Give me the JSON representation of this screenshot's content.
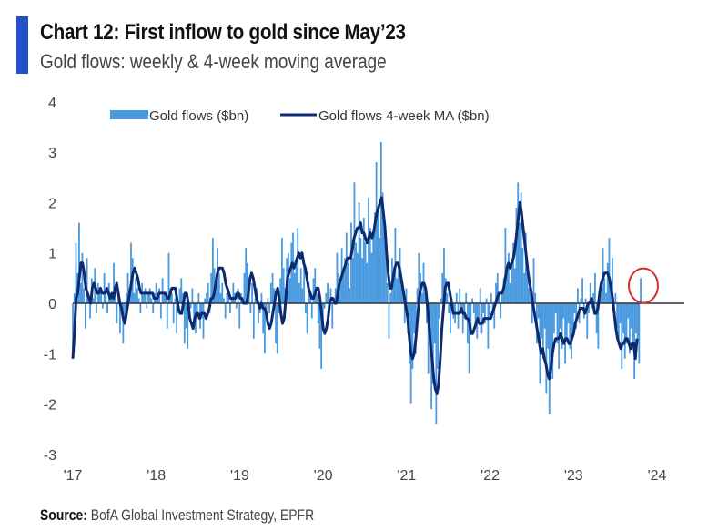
{
  "header": {
    "title": "Chart 12: First inflow to gold since May’23",
    "subtitle": "Gold flows: weekly & 4-week moving average"
  },
  "footer": {
    "source_label": "Source:",
    "source_text": "BofA Global Investment Strategy, EPFR"
  },
  "colors": {
    "accent": "#2352c8",
    "bars": "#4a9ae0",
    "ma_line": "#0d2a6e",
    "zero_line": "#333333",
    "highlight_circle": "#d0312d"
  },
  "chart_data": {
    "type": "bar",
    "title": "Chart 12: First inflow to gold since May’23",
    "subtitle": "Gold flows: weekly & 4-week moving average",
    "xlabel": "",
    "ylabel": "",
    "ylim": [
      -3,
      4
    ],
    "xlim": [
      2017.0,
      2024.0
    ],
    "yticks": [
      "4",
      "3",
      "2",
      "1",
      "0",
      "-1",
      "-2",
      "-3"
    ],
    "ytick_values": [
      4,
      3,
      2,
      1,
      0,
      -1,
      -2,
      -3
    ],
    "xticks": [
      "'17",
      "'18",
      "'19",
      "'20",
      "'21",
      "'22",
      "'23",
      "'24"
    ],
    "xtick_values": [
      2017,
      2018,
      2019,
      2020,
      2021,
      2022,
      2023,
      2024
    ],
    "grid": false,
    "legend": {
      "position": "top",
      "entries": [
        "Gold flows ($bn)",
        "Gold flows 4-week MA ($bn)"
      ]
    },
    "annotation": "red circle around latest weekly inflow",
    "x_start": 2017.0,
    "x_step_years": 0.01918,
    "series": [
      {
        "name": "Gold flows ($bn)",
        "kind": "bar",
        "values": [
          -1.0,
          0.2,
          1.2,
          0.6,
          1.6,
          0.4,
          1.0,
          0.3,
          -0.5,
          0.9,
          0.2,
          -0.3,
          0.5,
          0.1,
          0.7,
          -0.2,
          0.4,
          0.3,
          0.2,
          -0.1,
          0.6,
          0.3,
          -0.2,
          0.4,
          0.1,
          0.2,
          0.8,
          0.3,
          -0.4,
          0.1,
          -0.6,
          -0.2,
          -0.8,
          -0.4,
          0.2,
          0.6,
          0.3,
          1.2,
          0.9,
          0.2,
          0.5,
          0.3,
          0.1,
          -0.2,
          0.4,
          0.2,
          0.3,
          -0.1,
          0.2,
          0.3,
          0.1,
          -0.2,
          0.2,
          0.4,
          0.1,
          0.3,
          -0.3,
          0.5,
          0.2,
          0.1,
          -0.5,
          1.0,
          0.3,
          0.2,
          -0.4,
          0.1,
          -0.6,
          -0.2,
          0.3,
          0.5,
          0.2,
          -0.8,
          -0.5,
          -0.9,
          -0.3,
          -0.1,
          0.3,
          -0.4,
          -0.6,
          -0.2,
          0.2,
          -0.5,
          -0.3,
          -0.7,
          0.1,
          0.2,
          0.4,
          -0.2,
          0.6,
          1.3,
          0.7,
          0.3,
          1.1,
          0.6,
          0.2,
          0.4,
          0.1,
          -0.3,
          0.2,
          0.3,
          -0.2,
          0.1,
          0.4,
          0.2,
          -0.1,
          0.3,
          -0.5,
          0.2,
          0.1,
          0.6,
          1.1,
          0.8,
          0.5,
          -0.2,
          0.4,
          -0.7,
          0.1,
          0.3,
          -0.4,
          -0.2,
          0.2,
          -0.6,
          -1.0,
          -0.3,
          0.1,
          -0.2,
          0.4,
          0.6,
          0.3,
          -0.8,
          -1.0,
          -0.2,
          0.5,
          1.3,
          0.7,
          0.3,
          0.9,
          1.0,
          0.5,
          1.2,
          1.4,
          0.6,
          0.9,
          1.5,
          0.4,
          0.7,
          0.3,
          0.8,
          -0.2,
          -0.6,
          0.4,
          0.2,
          -0.3,
          0.5,
          0.7,
          0.2,
          -0.4,
          -0.9,
          -1.3,
          -0.5,
          -0.1,
          0.2,
          0.4,
          -0.2,
          0.3,
          -0.5,
          0.1,
          0.3,
          1.0,
          0.6,
          0.4,
          1.1,
          0.7,
          0.9,
          1.4,
          0.8,
          0.3,
          1.6,
          0.9,
          2.4,
          1.2,
          1.0,
          2.0,
          1.3,
          0.9,
          1.7,
          1.2,
          0.8,
          2.1,
          1.5,
          1.0,
          1.4,
          1.8,
          2.8,
          1.9,
          1.3,
          3.2,
          2.2,
          1.5,
          1.0,
          0.4,
          -0.7,
          0.2,
          0.9,
          0.6,
          1.5,
          0.5,
          0.8,
          1.1,
          0.4,
          0.2,
          -0.4,
          0.3,
          -0.6,
          -1.2,
          -2.0,
          -1.3,
          -0.6,
          -1.0,
          0.3,
          1.0,
          0.6,
          0.2,
          0.8,
          0.2,
          -0.4,
          -1.4,
          -0.9,
          -2.1,
          -1.6,
          -0.8,
          -2.4,
          -1.3,
          -0.3,
          0.1,
          0.6,
          1.1,
          0.5,
          0.2,
          -0.2,
          -0.6,
          0.1,
          -0.3,
          -0.4,
          0.2,
          -0.5,
          0.3,
          -0.1,
          -0.6,
          -0.3,
          0.2,
          -0.8,
          -1.4,
          -0.5,
          0.1,
          -0.2,
          -0.5,
          -0.7,
          -0.3,
          0.3,
          -0.6,
          -0.2,
          -0.4,
          0.1,
          -0.9,
          -0.3,
          0.2,
          -0.2,
          -0.5,
          0.4,
          0.6,
          0.2,
          -0.3,
          0.2,
          0.5,
          1.5,
          0.6,
          1.0,
          0.4,
          0.8,
          1.2,
          0.7,
          1.9,
          2.4,
          1.6,
          2.2,
          1.1,
          0.6,
          1.4,
          0.8,
          0.3,
          0.2,
          -0.4,
          0.9,
          0.2,
          -0.8,
          -0.3,
          -1.6,
          -0.7,
          -1.1,
          -0.5,
          -1.8,
          -0.9,
          -2.2,
          -1.2,
          -1.5,
          -0.6,
          -0.2,
          -0.8,
          -1.3,
          -0.5,
          -0.9,
          -0.3,
          -1.2,
          -0.7,
          -0.4,
          -0.9,
          -1.1,
          -0.6,
          -0.2,
          -0.5,
          0.3,
          -0.4,
          0.1,
          0.5,
          -0.3,
          0.1,
          -0.7,
          -0.2,
          0.4,
          -0.1,
          0.2,
          0.6,
          -0.6,
          -0.9,
          0.1,
          0.3,
          1.1,
          0.5,
          0.2,
          0.8,
          1.3,
          0.3,
          0.9,
          -0.1,
          0.2,
          -0.5,
          -0.8,
          -0.4,
          -1.3,
          -0.6,
          -1.1,
          -0.8,
          -0.3,
          -1.0,
          -0.5,
          -0.9,
          -1.5,
          -0.6,
          -0.8,
          -1.2,
          0.5
        ]
      },
      {
        "name": "Gold flows 4-week MA ($bn)",
        "kind": "line",
        "values": [
          -1.1,
          -0.6,
          0.1,
          0.2,
          0.5,
          0.8,
          0.8,
          0.6,
          0.3,
          0.2,
          0.1,
          0.0,
          0.3,
          0.4,
          0.3,
          0.2,
          0.2,
          0.3,
          0.2,
          0.2,
          0.2,
          0.3,
          0.2,
          0.1,
          0.2,
          0.1,
          0.3,
          0.4,
          0.2,
          0.0,
          -0.1,
          -0.3,
          -0.4,
          -0.2,
          0.0,
          0.2,
          0.4,
          0.6,
          0.7,
          0.6,
          0.5,
          0.3,
          0.2,
          0.2,
          0.2,
          0.2,
          0.2,
          0.2,
          0.2,
          0.2,
          0.1,
          0.1,
          0.1,
          0.2,
          0.2,
          0.2,
          0.2,
          0.2,
          0.1,
          0.1,
          0.2,
          0.3,
          0.3,
          0.3,
          0.1,
          -0.1,
          -0.2,
          -0.2,
          0.0,
          0.2,
          0.2,
          0.0,
          -0.3,
          -0.4,
          -0.5,
          -0.3,
          -0.2,
          -0.2,
          -0.3,
          -0.2,
          -0.2,
          -0.2,
          -0.3,
          -0.2,
          -0.1,
          0.1,
          0.1,
          0.2,
          0.4,
          0.6,
          0.7,
          0.7,
          0.7,
          0.6,
          0.4,
          0.3,
          0.2,
          0.1,
          0.1,
          0.1,
          0.1,
          0.2,
          0.2,
          0.1,
          0.1,
          0.0,
          0.0,
          0.0,
          0.2,
          0.5,
          0.6,
          0.5,
          0.3,
          0.1,
          0.0,
          -0.1,
          0.0,
          -0.1,
          -0.1,
          -0.2,
          -0.4,
          -0.5,
          -0.4,
          -0.2,
          0.0,
          0.2,
          0.3,
          0.1,
          -0.2,
          -0.4,
          -0.3,
          0.1,
          0.5,
          0.6,
          0.7,
          0.8,
          0.7,
          0.8,
          0.9,
          1.0,
          0.9,
          1.0,
          0.8,
          0.7,
          0.5,
          0.3,
          0.2,
          0.1,
          0.1,
          0.2,
          0.3,
          0.3,
          0.1,
          -0.2,
          -0.5,
          -0.6,
          -0.5,
          -0.3,
          0.0,
          0.1,
          0.1,
          0.0,
          0.0,
          0.2,
          0.4,
          0.5,
          0.6,
          0.7,
          0.8,
          0.9,
          0.9,
          0.9,
          1.1,
          1.3,
          1.4,
          1.5,
          1.5,
          1.6,
          1.4,
          1.4,
          1.3,
          1.2,
          1.3,
          1.4,
          1.3,
          1.4,
          1.6,
          1.8,
          1.9,
          2.0,
          2.1,
          1.8,
          1.5,
          1.0,
          0.6,
          0.3,
          0.3,
          0.5,
          0.7,
          0.8,
          0.8,
          0.7,
          0.5,
          0.3,
          0.1,
          -0.1,
          -0.3,
          -0.7,
          -1.0,
          -1.1,
          -1.0,
          -0.7,
          -0.3,
          0.1,
          0.3,
          0.4,
          0.4,
          0.3,
          0.0,
          -0.4,
          -0.8,
          -1.1,
          -1.5,
          -1.7,
          -1.8,
          -1.6,
          -1.1,
          -0.5,
          -0.1,
          0.3,
          0.4,
          0.4,
          0.2,
          0.0,
          -0.2,
          -0.2,
          -0.2,
          -0.2,
          -0.2,
          -0.1,
          -0.2,
          -0.2,
          -0.3,
          -0.3,
          -0.4,
          -0.6,
          -0.6,
          -0.5,
          -0.4,
          -0.3,
          -0.4,
          -0.4,
          -0.4,
          -0.3,
          -0.3,
          -0.3,
          -0.3,
          -0.3,
          -0.2,
          -0.1,
          0.0,
          0.1,
          0.2,
          0.2,
          0.2,
          0.3,
          0.5,
          0.7,
          0.8,
          0.7,
          0.8,
          0.9,
          1.1,
          1.4,
          1.7,
          2.0,
          1.8,
          1.5,
          1.2,
          0.9,
          0.6,
          0.4,
          0.2,
          0.0,
          -0.2,
          -0.4,
          -0.6,
          -0.8,
          -1.0,
          -0.9,
          -1.1,
          -1.2,
          -1.4,
          -1.5,
          -1.3,
          -1.0,
          -0.8,
          -0.7,
          -0.7,
          -0.7,
          -0.6,
          -0.7,
          -0.8,
          -0.7,
          -0.7,
          -0.8,
          -0.8,
          -0.7,
          -0.6,
          -0.4,
          -0.3,
          -0.2,
          -0.1,
          -0.1,
          -0.1,
          -0.2,
          -0.1,
          0.0,
          0.0,
          0.1,
          0.0,
          -0.2,
          -0.2,
          -0.1,
          0.2,
          0.4,
          0.5,
          0.6,
          0.6,
          0.6,
          0.5,
          0.3,
          0.1,
          -0.2,
          -0.5,
          -0.7,
          -0.8,
          -0.9,
          -0.8,
          -0.8,
          -0.7,
          -0.7,
          -0.8,
          -0.9,
          -0.8,
          -0.8,
          -1.1,
          -0.7
        ]
      }
    ]
  }
}
